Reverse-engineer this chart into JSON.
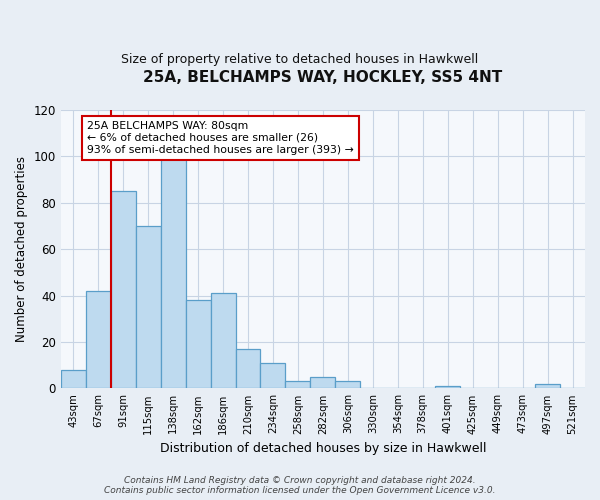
{
  "title": "25A, BELCHAMPS WAY, HOCKLEY, SS5 4NT",
  "subtitle": "Size of property relative to detached houses in Hawkwell",
  "xlabel": "Distribution of detached houses by size in Hawkwell",
  "ylabel": "Number of detached properties",
  "bar_labels": [
    "43sqm",
    "67sqm",
    "91sqm",
    "115sqm",
    "138sqm",
    "162sqm",
    "186sqm",
    "210sqm",
    "234sqm",
    "258sqm",
    "282sqm",
    "306sqm",
    "330sqm",
    "354sqm",
    "378sqm",
    "401sqm",
    "425sqm",
    "449sqm",
    "473sqm",
    "497sqm",
    "521sqm"
  ],
  "bar_values": [
    8,
    42,
    85,
    70,
    100,
    38,
    41,
    17,
    11,
    3,
    5,
    3,
    0,
    0,
    0,
    1,
    0,
    0,
    0,
    2,
    0
  ],
  "bar_color": "#bedaef",
  "bar_edge_color": "#5a9ec9",
  "ylim": [
    0,
    120
  ],
  "yticks": [
    0,
    20,
    40,
    60,
    80,
    100,
    120
  ],
  "vline_x": 1.5,
  "vline_color": "#cc0000",
  "annotation_line1": "25A BELCHAMPS WAY: 80sqm",
  "annotation_line2": "← 6% of detached houses are smaller (26)",
  "annotation_line3": "93% of semi-detached houses are larger (393) →",
  "footer_text": "Contains HM Land Registry data © Crown copyright and database right 2024.\nContains public sector information licensed under the Open Government Licence v3.0.",
  "background_color": "#e8eef5",
  "plot_background_color": "#f5f8fc",
  "grid_color": "#c8d4e4",
  "title_fontsize": 11,
  "subtitle_fontsize": 9,
  "ylabel_fontsize": 8.5,
  "xlabel_fontsize": 9
}
